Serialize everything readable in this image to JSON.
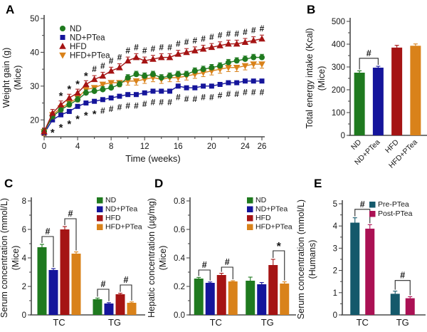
{
  "figure": {
    "background": "#ffffff",
    "kind": "five-panel scientific figure"
  },
  "chart_data": [
    {
      "id": "A",
      "panel_label": "A",
      "type": "line",
      "xlabel": "Time (weeks)",
      "ylabel": "Weight gain (g)",
      "ylabel2": "(Mice)",
      "xlim": [
        0,
        26
      ],
      "ylim": [
        15,
        50
      ],
      "xticks": [
        0,
        4,
        8,
        12,
        16,
        20,
        24,
        26
      ],
      "yticks": [
        20,
        30,
        40,
        50
      ],
      "legend_position": "top-left",
      "x": [
        0,
        1,
        2,
        3,
        4,
        5,
        6,
        7,
        8,
        9,
        10,
        11,
        12,
        13,
        14,
        15,
        16,
        17,
        18,
        19,
        20,
        21,
        22,
        23,
        24,
        25,
        26
      ],
      "series": [
        {
          "name": "ND",
          "color": "#1f7a1f",
          "marker": "circle",
          "err": 0.9,
          "err_dir": "up",
          "values": [
            16.5,
            21,
            23,
            24.5,
            26,
            28,
            28.5,
            29,
            29.5,
            30.5,
            32.5,
            33.5,
            33,
            33.5,
            32.5,
            33,
            33.5,
            33.5,
            34.5,
            35,
            35.5,
            36,
            37,
            37.5,
            38,
            38.5,
            38.5
          ]
        },
        {
          "name": "ND+PTea",
          "color": "#15159b",
          "marker": "square",
          "err": 0.4,
          "err_dir": "up",
          "values": [
            16,
            20,
            21.5,
            22.5,
            24,
            25,
            25.5,
            26,
            26.5,
            27,
            27.5,
            27.5,
            28,
            28.5,
            28.5,
            28.5,
            30,
            29.5,
            29.5,
            30,
            30,
            30.5,
            31,
            31,
            31.5,
            31.5,
            31.5
          ]
        },
        {
          "name": "HFD",
          "color": "#a51414",
          "marker": "triangle-up",
          "err": 1.1,
          "err_dir": "up",
          "values": [
            16.5,
            22,
            24.5,
            26.5,
            28,
            30.5,
            32,
            33,
            34.5,
            35.5,
            37.5,
            38.5,
            37.5,
            38,
            38.5,
            38.5,
            39.5,
            40,
            40.5,
            41,
            41.5,
            42,
            42.5,
            42.5,
            43,
            43.5,
            44
          ]
        },
        {
          "name": "HFD+PTea",
          "color": "#d9821a",
          "marker": "triangle-down",
          "err": 1.2,
          "err_dir": "down",
          "values": [
            16.5,
            21.5,
            23.5,
            25,
            26.5,
            29,
            29.5,
            30.5,
            31,
            31,
            31.5,
            31.5,
            32,
            32.5,
            32,
            32.5,
            32.5,
            33,
            33.5,
            34,
            34.5,
            35,
            35.5,
            35.5,
            36,
            36.5,
            36.5
          ]
        }
      ],
      "annotations": [
        {
          "row": "top",
          "symbol": "*",
          "ref_series": 2,
          "offset": 3.0,
          "weeks": [
            2,
            3,
            4,
            5
          ]
        },
        {
          "row": "top",
          "symbol": "#",
          "ref_series": 2,
          "offset": 3.0,
          "weeks": [
            6,
            7,
            8,
            9,
            10,
            11,
            12,
            13,
            14,
            15,
            16,
            17,
            18,
            19,
            20,
            21,
            22,
            23,
            24,
            25,
            26
          ]
        },
        {
          "row": "bottom",
          "symbol": "*",
          "ref_series": 1,
          "offset": -3.3,
          "weeks": [
            1,
            2,
            3,
            4,
            5,
            6
          ]
        },
        {
          "row": "bottom",
          "symbol": "#",
          "ref_series": 1,
          "offset": -3.3,
          "weeks": [
            7,
            8,
            9,
            10,
            11,
            12,
            13,
            14,
            15,
            16,
            17,
            18,
            19,
            20,
            21,
            22,
            23,
            24,
            25,
            26
          ]
        }
      ]
    },
    {
      "id": "B",
      "panel_label": "B",
      "type": "bar",
      "flat": true,
      "ylabel": "Total energy intake (Kcal)",
      "ylabel2": "(Mice)",
      "ylim": [
        0,
        500
      ],
      "yticks": [
        0,
        100,
        200,
        300,
        400,
        500
      ],
      "ytick_decimals": 0,
      "categories": [
        "ND",
        "ND+PTea",
        "HFD",
        "HFD+PTea"
      ],
      "rotate_xticks": true,
      "show_legend": false,
      "series": [
        {
          "name": "Total energy intake",
          "colors": [
            "#1f7a1f",
            "#15159b",
            "#a51414",
            "#d9821a"
          ],
          "values": [
            275,
            297,
            385,
            393
          ],
          "errors": [
            8,
            6,
            10,
            8
          ]
        }
      ],
      "brackets": [
        {
          "a": [
            0,
            0
          ],
          "b": [
            1,
            0
          ],
          "y": 338,
          "label": "#"
        }
      ]
    },
    {
      "id": "C",
      "panel_label": "C",
      "type": "bar",
      "ylabel": "Serum concentration (mmol/L)",
      "ylabel2": "(Mice)",
      "ylim": [
        0,
        8
      ],
      "yticks": [
        0,
        2,
        4,
        6,
        8
      ],
      "ytick_decimals": 0,
      "categories": [
        "TC",
        "TG"
      ],
      "show_legend": true,
      "series": [
        {
          "name": "ND",
          "color": "#1f7a1f",
          "values": [
            4.75,
            1.1
          ],
          "errors": [
            0.2,
            0.08
          ]
        },
        {
          "name": "ND+PTea",
          "color": "#15159b",
          "values": [
            3.15,
            0.8
          ],
          "errors": [
            0.1,
            0.06
          ]
        },
        {
          "name": "HFD",
          "color": "#a51414",
          "values": [
            6.0,
            1.45
          ],
          "errors": [
            0.2,
            0.07
          ]
        },
        {
          "name": "HFD+PTea",
          "color": "#d9821a",
          "values": [
            4.3,
            0.85
          ],
          "errors": [
            0.12,
            0.06
          ]
        }
      ],
      "brackets": [
        {
          "a": [
            0,
            0
          ],
          "b": [
            0,
            1
          ],
          "y": 5.5,
          "label": "#"
        },
        {
          "a": [
            0,
            2
          ],
          "b": [
            0,
            3
          ],
          "y": 6.75,
          "label": "#"
        },
        {
          "a": [
            1,
            0
          ],
          "b": [
            1,
            1
          ],
          "y": 1.8,
          "label": "#"
        },
        {
          "a": [
            1,
            2
          ],
          "b": [
            1,
            3
          ],
          "y": 2.1,
          "label": "#"
        }
      ]
    },
    {
      "id": "D",
      "panel_label": "D",
      "type": "bar",
      "ylabel": "Hepatic concentration (µg/mg)",
      "ylabel2": "(Mice)",
      "ylim": [
        0,
        0.8
      ],
      "yticks": [
        0,
        0.2,
        0.4,
        0.6,
        0.8
      ],
      "ytick_decimals": 1,
      "categories": [
        "TC",
        "TG"
      ],
      "show_legend": true,
      "series": [
        {
          "name": "ND",
          "color": "#1f7a1f",
          "values": [
            0.255,
            0.24
          ],
          "errors": [
            0.008,
            0.025
          ]
        },
        {
          "name": "ND+PTea",
          "color": "#15159b",
          "values": [
            0.225,
            0.215
          ],
          "errors": [
            0.006,
            0.012
          ]
        },
        {
          "name": "HFD",
          "color": "#a51414",
          "values": [
            0.28,
            0.35
          ],
          "errors": [
            0.012,
            0.04
          ]
        },
        {
          "name": "HFD+PTea",
          "color": "#d9821a",
          "values": [
            0.235,
            0.22
          ],
          "errors": [
            0.005,
            0.012
          ]
        }
      ],
      "brackets": [
        {
          "a": [
            0,
            0
          ],
          "b": [
            0,
            1
          ],
          "y": 0.315,
          "label": "#"
        },
        {
          "a": [
            0,
            2
          ],
          "b": [
            0,
            3
          ],
          "y": 0.335,
          "label": "#"
        },
        {
          "a": [
            1,
            2
          ],
          "b": [
            1,
            3
          ],
          "y": 0.45,
          "label": "*"
        }
      ]
    },
    {
      "id": "E",
      "panel_label": "E",
      "type": "bar",
      "ylabel": "Serum concentration (mmol/L)",
      "ylabel2": "(Humans)",
      "ylim": [
        0,
        5
      ],
      "yticks": [
        0,
        1,
        2,
        3,
        4,
        5
      ],
      "ytick_decimals": 0,
      "categories": [
        "TC",
        "TG"
      ],
      "show_legend": true,
      "series": [
        {
          "name": "Pre-PTea",
          "color": "#14596b",
          "values": [
            4.15,
            0.95
          ],
          "errors": [
            0.22,
            0.12
          ]
        },
        {
          "name": "Post-PTea",
          "color": "#ab1154",
          "values": [
            3.88,
            0.75
          ],
          "errors": [
            0.18,
            0.07
          ]
        }
      ],
      "brackets": [
        {
          "a": [
            0,
            0
          ],
          "b": [
            0,
            1
          ],
          "y": 4.75,
          "label": "#"
        },
        {
          "a": [
            1,
            0
          ],
          "b": [
            1,
            1
          ],
          "y": 1.55,
          "label": "#"
        }
      ]
    }
  ]
}
